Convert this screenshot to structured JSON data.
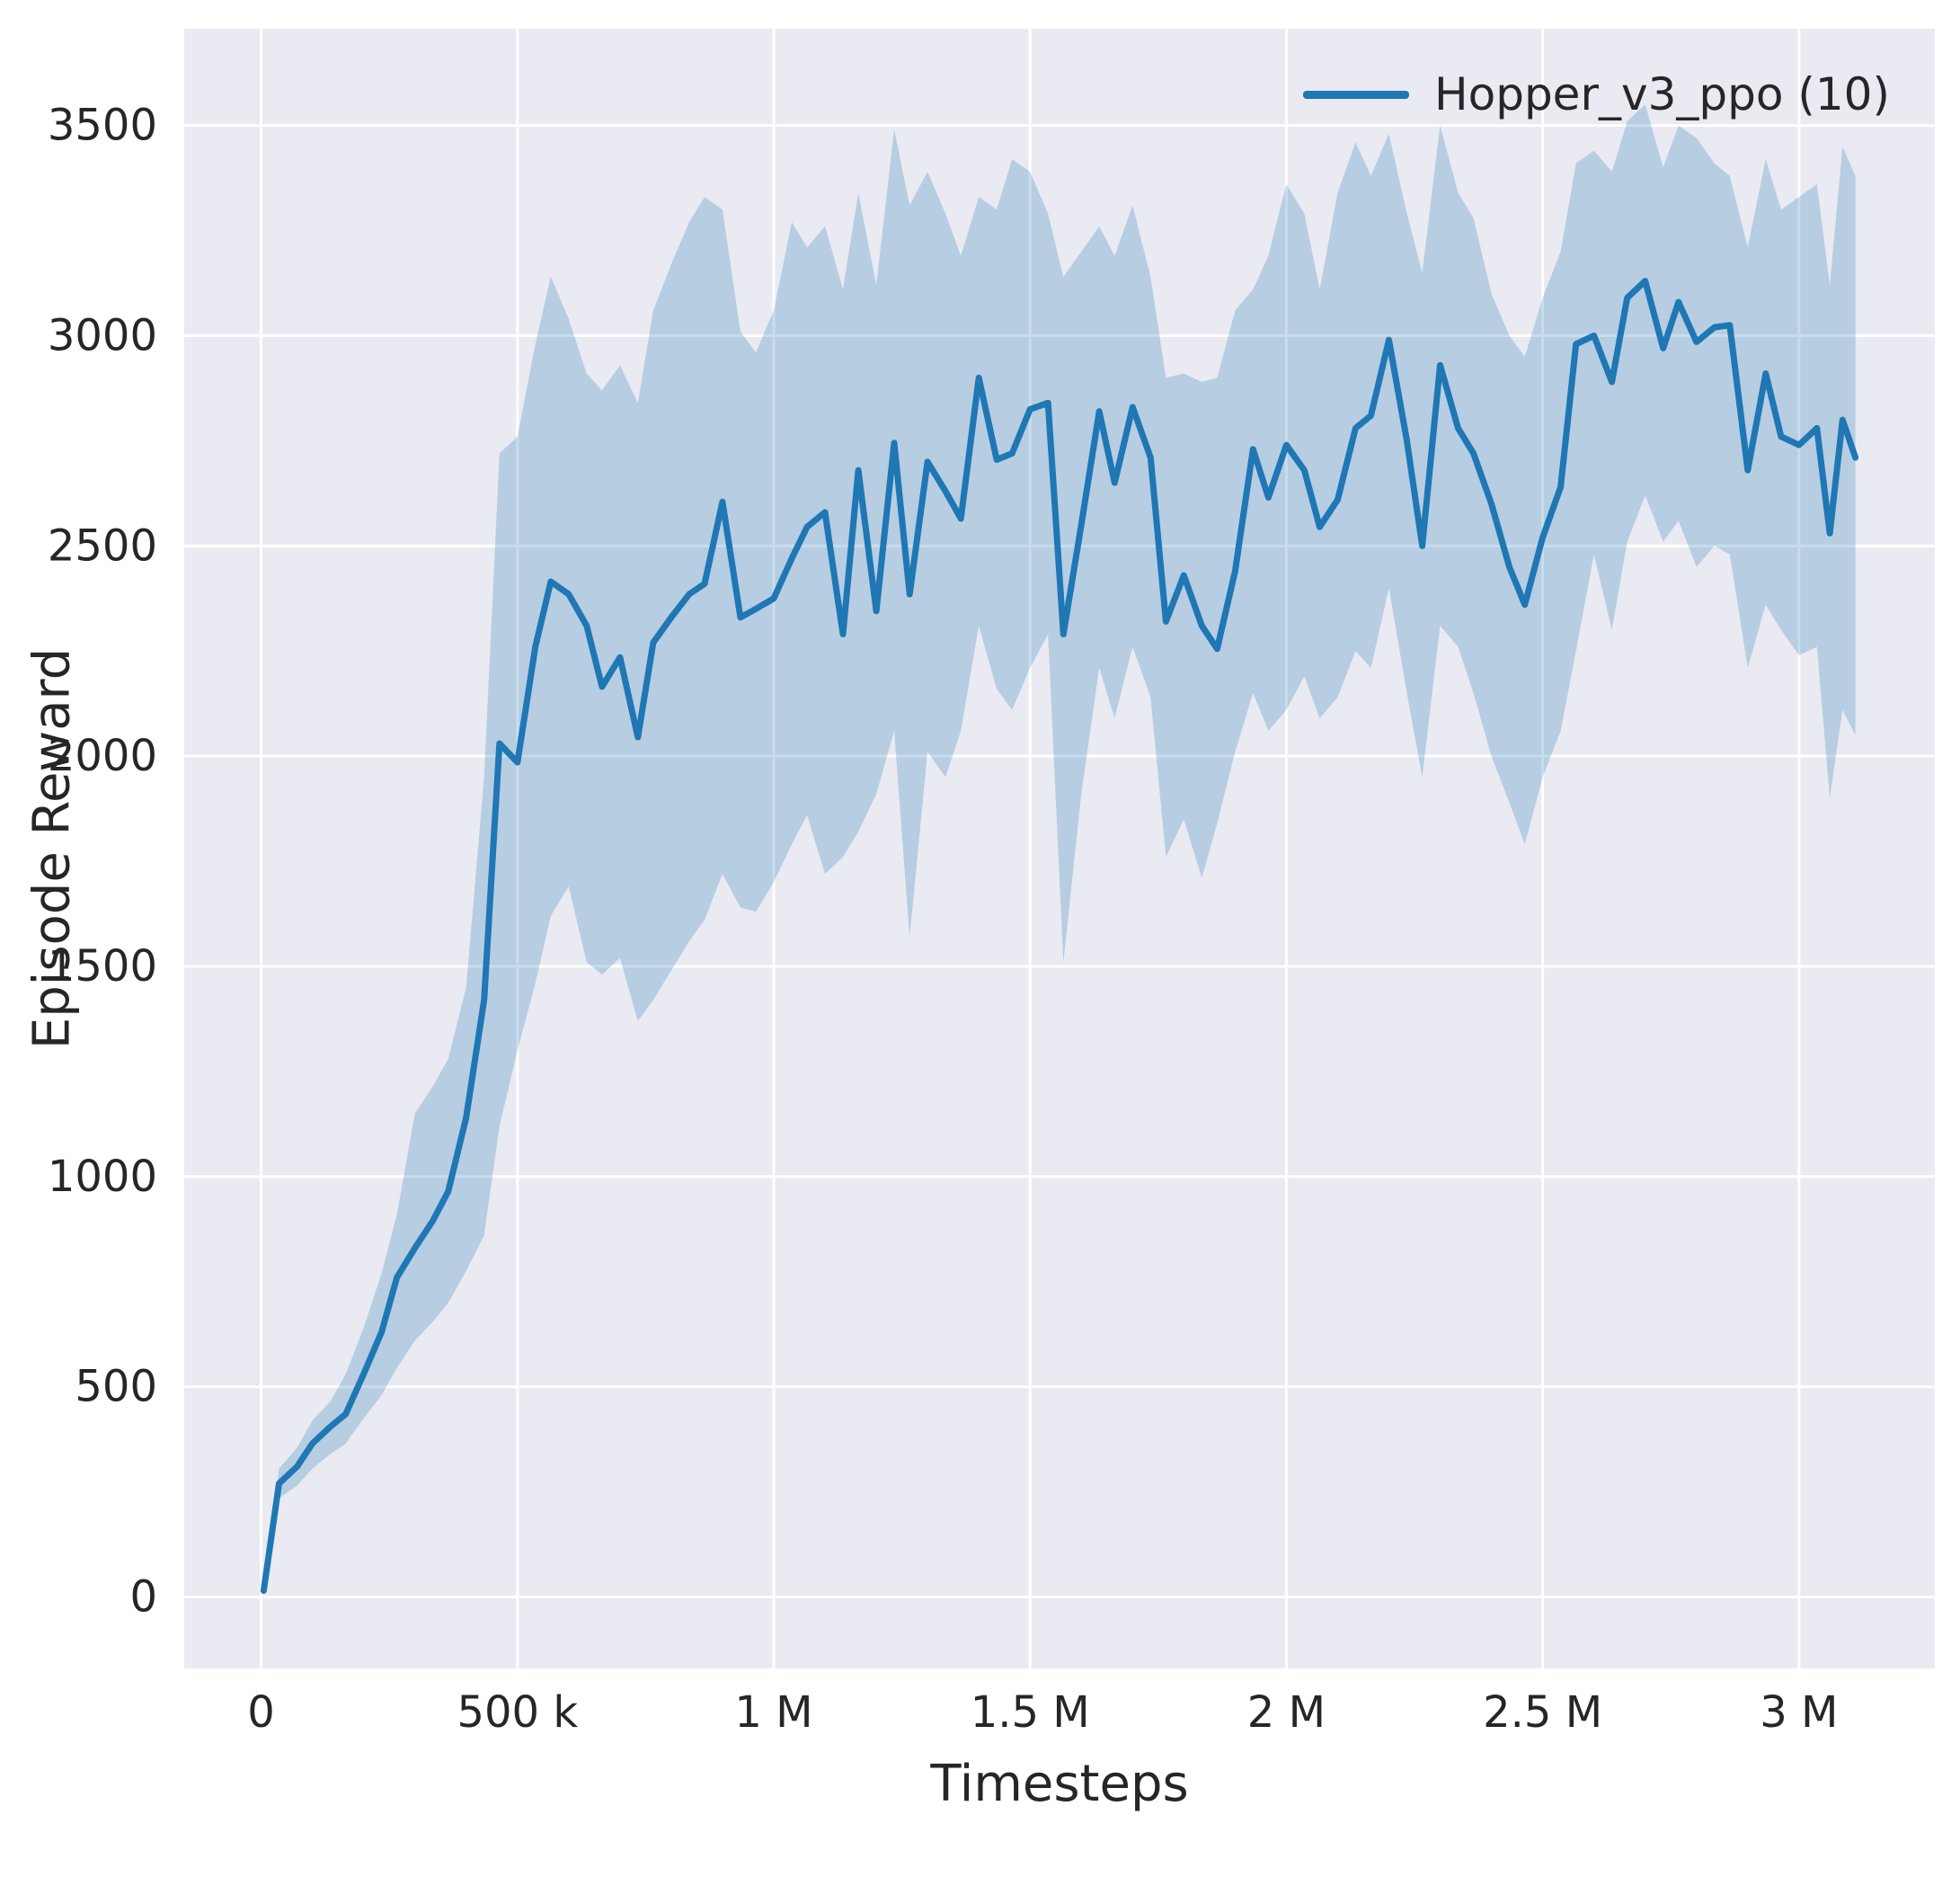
{
  "chart_data": {
    "type": "line",
    "title": "",
    "xlabel": "Timesteps",
    "ylabel": "Episode Reward",
    "grid": true,
    "legend": {
      "position": "upper right",
      "entries": [
        "Hopper_v3_ppo (10)"
      ]
    },
    "xlim": [
      -150000,
      3265000
    ],
    "ylim": [
      -170,
      3730
    ],
    "x_ticks": [
      {
        "value": 0,
        "label": "0"
      },
      {
        "value": 500000,
        "label": "500 k"
      },
      {
        "value": 1000000,
        "label": "1 M"
      },
      {
        "value": 1500000,
        "label": "1.5 M"
      },
      {
        "value": 2000000,
        "label": "2 M"
      },
      {
        "value": 2500000,
        "label": "2.5 M"
      },
      {
        "value": 3000000,
        "label": "3 M"
      }
    ],
    "y_ticks": [
      {
        "value": 0,
        "label": "0"
      },
      {
        "value": 500,
        "label": "500"
      },
      {
        "value": 1000,
        "label": "1000"
      },
      {
        "value": 1500,
        "label": "1500"
      },
      {
        "value": 2000,
        "label": "2000"
      },
      {
        "value": 2500,
        "label": "2500"
      },
      {
        "value": 3000,
        "label": "3000"
      },
      {
        "value": 3500,
        "label": "3500"
      }
    ],
    "colors": {
      "line": "#1f77b4",
      "band": "#1f77b4",
      "plot_bg": "#eaeaf2",
      "grid": "#ffffff",
      "text": "#262626"
    },
    "series": [
      {
        "name": "Hopper_v3_ppo (10)",
        "color": "#1f77b4",
        "band_opacity": 0.25,
        "x": [
          5000,
          35000,
          70000,
          100000,
          135000,
          165000,
          200000,
          235000,
          265000,
          300000,
          335000,
          365000,
          400000,
          435000,
          465000,
          500000,
          535000,
          565000,
          600000,
          635000,
          665000,
          700000,
          735000,
          765000,
          800000,
          835000,
          865000,
          900000,
          935000,
          965000,
          1000000,
          1035000,
          1065000,
          1100000,
          1135000,
          1165000,
          1200000,
          1235000,
          1265000,
          1300000,
          1335000,
          1365000,
          1400000,
          1435000,
          1465000,
          1500000,
          1535000,
          1565000,
          1600000,
          1635000,
          1665000,
          1700000,
          1735000,
          1765000,
          1800000,
          1835000,
          1865000,
          1900000,
          1935000,
          1965000,
          2000000,
          2035000,
          2065000,
          2100000,
          2135000,
          2165000,
          2200000,
          2235000,
          2265000,
          2300000,
          2335000,
          2365000,
          2400000,
          2435000,
          2465000,
          2500000,
          2535000,
          2565000,
          2600000,
          2635000,
          2665000,
          2700000,
          2735000,
          2765000,
          2800000,
          2835000,
          2865000,
          2900000,
          2935000,
          2965000,
          3000000,
          3035000,
          3060000,
          3085000,
          3110000
        ],
        "mean": [
          15,
          270,
          310,
          365,
          405,
          435,
          530,
          630,
          760,
          830,
          895,
          965,
          1140,
          1420,
          2030,
          1985,
          2260,
          2415,
          2385,
          2310,
          2165,
          2235,
          2045,
          2270,
          2330,
          2385,
          2410,
          2605,
          2330,
          2350,
          2375,
          2470,
          2545,
          2580,
          2290,
          2680,
          2345,
          2745,
          2385,
          2700,
          2630,
          2565,
          2900,
          2705,
          2720,
          2825,
          2840,
          2290,
          2550,
          2820,
          2650,
          2830,
          2710,
          2320,
          2430,
          2310,
          2255,
          2440,
          2730,
          2615,
          2740,
          2680,
          2545,
          2610,
          2780,
          2810,
          2990,
          2750,
          2500,
          2930,
          2780,
          2720,
          2600,
          2450,
          2360,
          2520,
          2640,
          2980,
          3000,
          2890,
          3090,
          3130,
          2970,
          3080,
          2985,
          3020,
          3025,
          2680,
          2910,
          2760,
          2740,
          2780,
          2530,
          2800,
          2710
        ],
        "lower": [
          8,
          235,
          265,
          305,
          340,
          365,
          425,
          480,
          545,
          610,
          655,
          700,
          775,
          860,
          1120,
          1300,
          1460,
          1620,
          1690,
          1510,
          1480,
          1520,
          1370,
          1420,
          1490,
          1560,
          1610,
          1720,
          1640,
          1630,
          1700,
          1790,
          1860,
          1720,
          1760,
          1820,
          1910,
          2060,
          1570,
          2010,
          1950,
          2060,
          2310,
          2160,
          2110,
          2210,
          2290,
          1510,
          1910,
          2210,
          2090,
          2260,
          2140,
          1760,
          1850,
          1710,
          1840,
          2010,
          2150,
          2060,
          2110,
          2190,
          2090,
          2140,
          2250,
          2210,
          2400,
          2150,
          1950,
          2310,
          2260,
          2150,
          2000,
          1890,
          1790,
          1950,
          2060,
          2250,
          2480,
          2300,
          2510,
          2620,
          2510,
          2560,
          2450,
          2500,
          2480,
          2210,
          2360,
          2300,
          2240,
          2260,
          1900,
          2110,
          2050
        ],
        "upper": [
          25,
          305,
          355,
          420,
          465,
          530,
          640,
          770,
          910,
          1150,
          1215,
          1280,
          1450,
          1950,
          2720,
          2760,
          2980,
          3140,
          3040,
          2910,
          2870,
          2930,
          2840,
          3060,
          3170,
          3270,
          3330,
          3300,
          3010,
          2960,
          3060,
          3270,
          3210,
          3260,
          3110,
          3340,
          3120,
          3490,
          3310,
          3390,
          3290,
          3190,
          3330,
          3300,
          3420,
          3390,
          3290,
          3140,
          3200,
          3260,
          3190,
          3310,
          3140,
          2900,
          2910,
          2890,
          2900,
          3060,
          3110,
          3190,
          3360,
          3290,
          3110,
          3340,
          3460,
          3380,
          3480,
          3290,
          3150,
          3500,
          3340,
          3280,
          3100,
          3000,
          2950,
          3090,
          3200,
          3410,
          3440,
          3390,
          3510,
          3550,
          3400,
          3500,
          3470,
          3410,
          3380,
          3210,
          3420,
          3300,
          3330,
          3360,
          3120,
          3450,
          3380
        ]
      }
    ]
  }
}
